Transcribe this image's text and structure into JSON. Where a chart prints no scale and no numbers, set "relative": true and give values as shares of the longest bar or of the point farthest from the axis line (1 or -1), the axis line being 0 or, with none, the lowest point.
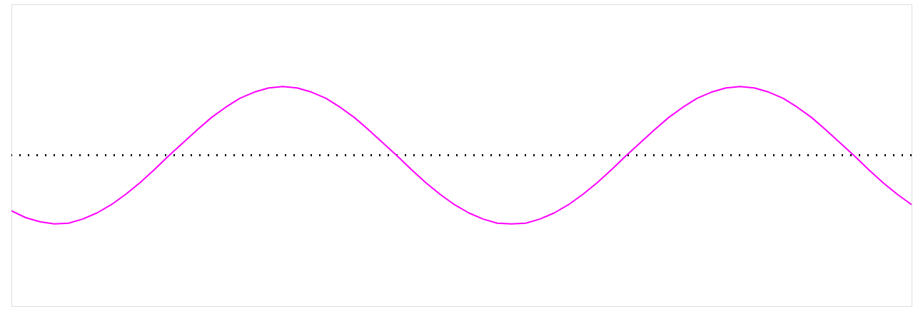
{
  "chart_data": {
    "type": "line",
    "relative": true,
    "tick_labels": false,
    "categories": [
      null,
      null,
      null,
      null,
      null,
      null,
      null,
      null,
      null,
      null,
      null,
      null,
      null,
      null,
      null,
      null,
      null,
      null,
      null,
      null,
      null,
      null,
      null,
      null,
      null,
      null,
      null,
      null,
      null,
      null,
      null,
      null,
      null,
      null,
      null,
      null,
      null,
      null,
      null,
      null,
      null,
      null,
      null,
      null,
      null,
      null,
      null,
      null,
      null,
      null,
      null,
      null,
      null,
      null,
      null,
      null,
      null,
      null,
      null,
      null,
      null,
      null,
      null,
      null
    ],
    "series": [
      {
        "color": "#ff00ff",
        "values": [
          -0.81,
          -0.91,
          -0.97,
          -1.0,
          -0.99,
          -0.93,
          -0.84,
          -0.72,
          -0.57,
          -0.4,
          -0.21,
          -0.01,
          0.18,
          0.37,
          0.55,
          0.7,
          0.83,
          0.92,
          0.98,
          1.0,
          0.98,
          0.92,
          0.83,
          0.7,
          0.55,
          0.37,
          0.18,
          -0.01,
          -0.21,
          -0.4,
          -0.57,
          -0.72,
          -0.84,
          -0.93,
          -0.99,
          -1.0,
          -0.99,
          -0.93,
          -0.84,
          -0.72,
          -0.57,
          -0.4,
          -0.21,
          -0.01,
          0.18,
          0.37,
          0.55,
          0.7,
          0.83,
          0.92,
          0.98,
          1.0,
          0.98,
          0.92,
          0.83,
          0.7,
          0.55,
          0.37,
          0.18,
          -0.01,
          -0.21,
          -0.4,
          -0.57,
          -0.72
        ]
      }
    ],
    "ref_lines": [
      {
        "axis": "y",
        "value": 0,
        "line_style": "dotted",
        "color": "#000000"
      }
    ]
  }
}
